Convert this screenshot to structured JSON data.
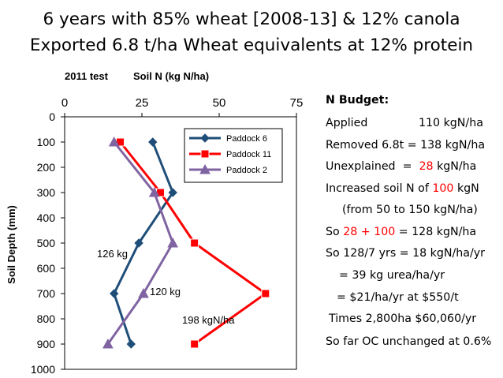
{
  "slide": {
    "title_line1": "6 years with 85% wheat [2008-13] & 12% canola",
    "title_line2": "Exported 6.8 t/ha Wheat equivalents at 12% protein"
  },
  "chart_data": {
    "type": "line",
    "test_label": "2011 test",
    "title": "Soil N (kg N/ha)",
    "ylabel": "Soil Depth (mm)",
    "xlabel": "",
    "xlim": [
      0,
      75
    ],
    "ylim": [
      0,
      1000
    ],
    "y_inverted": true,
    "x_ticks": [
      "0",
      "25",
      "50",
      "75"
    ],
    "y_ticks": [
      "0",
      "100",
      "200",
      "300",
      "400",
      "500",
      "600",
      "700",
      "800",
      "900",
      "1000"
    ],
    "legend_position": "top-right",
    "series": [
      {
        "name": "Paddock 6",
        "color": "#1f4e79",
        "marker": "diamond",
        "points": [
          [
            28.5,
            100
          ],
          [
            35,
            300
          ],
          [
            24,
            500
          ],
          [
            16,
            700
          ],
          [
            21.5,
            900
          ]
        ]
      },
      {
        "name": "Paddock 11",
        "color": "#ff0000",
        "marker": "square",
        "points": [
          [
            18,
            100
          ],
          [
            31,
            300
          ],
          [
            42,
            500
          ],
          [
            65,
            700
          ],
          [
            42,
            900
          ]
        ]
      },
      {
        "name": "Paddock 2",
        "color": "#8064a2",
        "marker": "triangle",
        "points": [
          [
            16,
            100
          ],
          [
            29,
            300
          ],
          [
            35,
            500
          ],
          [
            25.5,
            700
          ],
          [
            14,
            900
          ]
        ]
      }
    ],
    "annotations": [
      "126 kg",
      "120 kg",
      "198 kgN/ha"
    ]
  },
  "budget": {
    "heading": "N Budget:",
    "applied_label": "Applied",
    "applied_value": "110 kgN/ha",
    "removed": "Removed 6.8t = 138 kgN/ha",
    "unexplained_label": "Unexplained  =  ",
    "unexplained_value": "28",
    "unexplained_unit": " kgN/ha",
    "increased_prefix": "Increased soil N of ",
    "increased_value": "100",
    "increased_unit": " kgN",
    "from_line": "(from 50 to 150 kgN/ha)",
    "so_prefix": "So ",
    "so_value": "28 + 100",
    "so_suffix": " = 128 kgN/ha",
    "per_year": "So 128/7 yrs = 18 kgN/ha/yr",
    "urea": "= 39 kg urea/ha/yr",
    "dollars": "= $21/ha/yr at $550/t",
    "times": "Times 2,800ha $60,060/yr",
    "oc": "So far OC unchanged at 0.6%"
  }
}
